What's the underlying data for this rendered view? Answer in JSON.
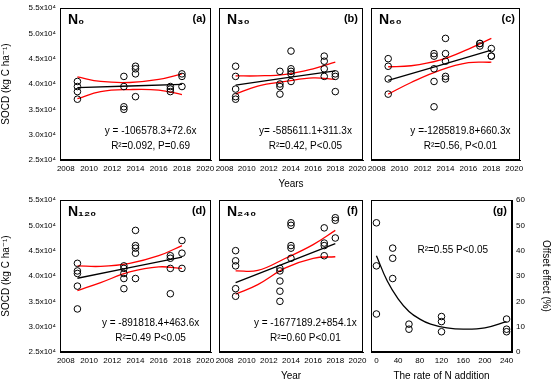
{
  "chart_data": [
    {
      "type": "scatter",
      "title": "N₀",
      "label": "(a)",
      "annotations": [
        "y = -106578.3+72.6x",
        "R²=0.092, P=0.69"
      ],
      "y_label": "SOCD (kg C ha⁻¹)",
      "xlim": [
        2007.5,
        2020.5
      ],
      "xticks": [
        2008,
        2010,
        2012,
        2014,
        2016,
        2018,
        2020
      ],
      "ylim": [
        25000,
        55000
      ],
      "yticks": [
        {
          "value": 25000,
          "label": "2.5x10⁴"
        },
        {
          "value": 30000,
          "label": "3.0x10⁴"
        },
        {
          "value": 35000,
          "label": "3.5x10⁴"
        },
        {
          "value": 40000,
          "label": "4.0x10⁴"
        },
        {
          "value": 45000,
          "label": "4.5x10⁴"
        },
        {
          "value": 50000,
          "label": "5.0x10⁴"
        },
        {
          "value": 55000,
          "label": "5.5x10⁴"
        }
      ],
      "grid": false,
      "series": [
        {
          "type": "scatter",
          "marker": "circle",
          "color": "#000000",
          "x": [
            2009,
            2009,
            2009,
            2009,
            2013,
            2013,
            2013,
            2013,
            2014,
            2014,
            2014,
            2014,
            2017,
            2017,
            2017,
            2018,
            2018,
            2018
          ],
          "values": [
            37000,
            38500,
            39500,
            40500,
            35000,
            35500,
            39500,
            41500,
            37500,
            42000,
            43000,
            43500,
            38500,
            39000,
            39500,
            39500,
            41500,
            42000
          ]
        },
        {
          "type": "line",
          "color": "#000000",
          "x": [
            2009,
            2018
          ],
          "values": [
            39275,
            39928
          ]
        },
        {
          "type": "line",
          "color": "#ff0000",
          "x": [
            2009,
            2011,
            2013.5,
            2016,
            2018
          ],
          "values": [
            41400,
            40500,
            40300,
            40900,
            42000
          ]
        },
        {
          "type": "line",
          "color": "#ff0000",
          "x": [
            2009,
            2011,
            2013.5,
            2016,
            2018
          ],
          "values": [
            37100,
            38500,
            38900,
            38800,
            37900
          ]
        }
      ]
    },
    {
      "type": "scatter",
      "title": "N₃₀",
      "label": "(b)",
      "annotations": [
        "y= -585611.1+311.3x",
        "R²=0.42, P<0.05"
      ],
      "x_label": "Years",
      "tick_labels": "x",
      "xlim": [
        2007.5,
        2020.5
      ],
      "xticks": [
        2008,
        2010,
        2012,
        2014,
        2016,
        2018,
        2020
      ],
      "ylim": [
        25000,
        55000
      ],
      "yticks": [
        25000,
        30000,
        35000,
        40000,
        45000,
        50000,
        55000
      ],
      "grid": false,
      "series": [
        {
          "type": "scatter",
          "marker": "circle",
          "color": "#000000",
          "x": [
            2009,
            2009,
            2009,
            2009,
            2009,
            2013,
            2013,
            2013,
            2013,
            2014,
            2014,
            2014,
            2014,
            2014,
            2017,
            2017,
            2017,
            2017,
            2018,
            2018,
            2018
          ],
          "values": [
            37000,
            37500,
            39000,
            41500,
            43500,
            38000,
            39500,
            40000,
            42500,
            40500,
            42000,
            42500,
            43000,
            46500,
            41500,
            43000,
            44500,
            45500,
            38500,
            41500,
            42000
          ]
        },
        {
          "type": "line",
          "color": "#000000",
          "x": [
            2009,
            2018
          ],
          "values": [
            39791,
            42592
          ]
        },
        {
          "type": "line",
          "color": "#ff0000",
          "x": [
            2009,
            2011,
            2013.5,
            2016,
            2018
          ],
          "values": [
            41600,
            41600,
            41900,
            43000,
            44300
          ]
        },
        {
          "type": "line",
          "color": "#ff0000",
          "x": [
            2009,
            2011,
            2013.5,
            2016,
            2018
          ],
          "values": [
            38000,
            39600,
            40500,
            41200,
            40900
          ]
        }
      ]
    },
    {
      "type": "scatter",
      "title": "N₆₀",
      "label": "(c)",
      "annotations": [
        "y =-1285819.8+660.3x",
        "R²=0.56, P<0.01"
      ],
      "tick_labels": "x",
      "xlim": [
        2007.5,
        2020.5
      ],
      "xticks": [
        2008,
        2010,
        2012,
        2014,
        2016,
        2018,
        2020
      ],
      "ylim": [
        25000,
        55000
      ],
      "yticks": [
        25000,
        30000,
        35000,
        40000,
        45000,
        50000,
        55000
      ],
      "grid": false,
      "series": [
        {
          "type": "scatter",
          "marker": "circle",
          "color": "#000000",
          "x": [
            2009,
            2009,
            2009,
            2009,
            2013,
            2013,
            2013,
            2013,
            2013,
            2014,
            2014,
            2014,
            2014,
            2014,
            2017,
            2017,
            2017,
            2018,
            2018,
            2018
          ],
          "values": [
            38000,
            41000,
            43500,
            45000,
            35500,
            40500,
            43000,
            45500,
            46000,
            41000,
            41500,
            44500,
            46000,
            49000,
            47500,
            48000,
            48000,
            45500,
            45500,
            47000
          ]
        },
        {
          "type": "line",
          "color": "#000000",
          "x": [
            2009,
            2018
          ],
          "values": [
            40723,
            46665
          ]
        },
        {
          "type": "line",
          "color": "#ff0000",
          "x": [
            2009,
            2011,
            2013.5,
            2016,
            2018
          ],
          "values": [
            43400,
            43600,
            44700,
            46900,
            49000
          ]
        },
        {
          "type": "line",
          "color": "#ff0000",
          "x": [
            2009,
            2011,
            2013.5,
            2016,
            2018
          ],
          "values": [
            38000,
            40300,
            42700,
            44200,
            44300
          ]
        }
      ]
    },
    {
      "type": "scatter",
      "title": "N₁₂₀",
      "label": "(d)",
      "annotations": [
        "y = -891818.4+463.6x",
        "R²=0.49 P<0.05"
      ],
      "y_label": "SOCD (kg C ha⁻¹)",
      "xlim": [
        2007.5,
        2020.5
      ],
      "xticks": [
        2008,
        2010,
        2012,
        2014,
        2016,
        2018,
        2020
      ],
      "ylim": [
        25000,
        55000
      ],
      "yticks": [
        {
          "value": 25000,
          "label": "2.5x10⁴"
        },
        {
          "value": 30000,
          "label": "3.0x10⁴"
        },
        {
          "value": 35000,
          "label": "3.5x10⁴"
        },
        {
          "value": 40000,
          "label": "4.0x10⁴"
        },
        {
          "value": 45000,
          "label": "4.5x10⁴"
        },
        {
          "value": 50000,
          "label": "5.0x10⁴"
        },
        {
          "value": 55000,
          "label": "5.5x10⁴"
        }
      ],
      "grid": false,
      "series": [
        {
          "type": "scatter",
          "marker": "circle",
          "color": "#000000",
          "x": [
            2009,
            2009,
            2009,
            2009,
            2009,
            2013,
            2013,
            2013,
            2013,
            2013,
            2014,
            2014,
            2014,
            2014,
            2014,
            2017,
            2017,
            2017,
            2017,
            2018,
            2018,
            2018
          ],
          "values": [
            33500,
            38000,
            40500,
            41000,
            42500,
            37500,
            39500,
            40500,
            41500,
            42000,
            39500,
            44500,
            45500,
            46000,
            49000,
            36500,
            41500,
            43500,
            44000,
            41500,
            44500,
            47000
          ]
        },
        {
          "type": "line",
          "color": "#000000",
          "x": [
            2009,
            2018
          ],
          "values": [
            39554,
            43726
          ]
        },
        {
          "type": "line",
          "color": "#ff0000",
          "x": [
            2009,
            2011,
            2013.5,
            2016,
            2018
          ],
          "values": [
            42000,
            41900,
            42500,
            44000,
            46000
          ]
        },
        {
          "type": "line",
          "color": "#ff0000",
          "x": [
            2009,
            2011,
            2013.5,
            2016,
            2018
          ],
          "values": [
            37100,
            38700,
            40800,
            41800,
            41500
          ]
        }
      ]
    },
    {
      "type": "scatter",
      "title": "N₂₄₀",
      "label": "(f)",
      "annotations": [
        "y = -1677189.2+854.1x",
        "R²=0.60 P<0.01"
      ],
      "x_label": "Year",
      "tick_labels": "x",
      "xlim": [
        2007.5,
        2020.5
      ],
      "xticks": [
        2008,
        2010,
        2012,
        2014,
        2016,
        2018,
        2020
      ],
      "ylim": [
        25000,
        55000
      ],
      "yticks": [
        25000,
        30000,
        35000,
        40000,
        45000,
        50000,
        55000
      ],
      "grid": false,
      "series": [
        {
          "type": "scatter",
          "marker": "circle",
          "color": "#000000",
          "x": [
            2009,
            2009,
            2009,
            2009,
            2009,
            2013,
            2013,
            2013,
            2013,
            2013,
            2014,
            2014,
            2014,
            2014,
            2014,
            2017,
            2017,
            2017,
            2017,
            2018,
            2018,
            2018
          ],
          "values": [
            36000,
            37500,
            42000,
            43000,
            45000,
            35000,
            37000,
            39000,
            41000,
            41500,
            43500,
            45500,
            46000,
            50000,
            50500,
            44000,
            46000,
            46500,
            49500,
            47500,
            51000,
            51500
          ]
        },
        {
          "type": "line",
          "color": "#000000",
          "x": [
            2009,
            2018
          ],
          "values": [
            38698,
            46385
          ]
        },
        {
          "type": "line",
          "color": "#ff0000",
          "x": [
            2009,
            2011,
            2013.5,
            2016,
            2018
          ],
          "values": [
            41000,
            41100,
            43500,
            46200,
            49000
          ]
        },
        {
          "type": "line",
          "color": "#ff0000",
          "x": [
            2009,
            2011,
            2013.5,
            2016,
            2018
          ],
          "values": [
            36400,
            38300,
            41600,
            43500,
            43800
          ]
        }
      ]
    },
    {
      "type": "scatter",
      "label": "(g)",
      "annotations": [
        "R²=0.55 P<0.05"
      ],
      "x_label": "The rate of N addition",
      "y2_label": "Offset effect (%)",
      "xlim": [
        -10,
        250
      ],
      "xticks": [
        0,
        40,
        80,
        120,
        160,
        200,
        240
      ],
      "y2lim": [
        0,
        60
      ],
      "y2ticks": [
        0,
        10,
        20,
        30,
        40,
        50,
        60
      ],
      "grid": false,
      "series": [
        {
          "type": "scatter",
          "marker": "circle",
          "color": "#000000",
          "axis": "y2",
          "x": [
            0,
            0,
            0,
            30,
            30,
            30,
            60,
            60,
            120,
            120,
            120,
            240,
            240,
            240
          ],
          "values": [
            51,
            34,
            15,
            41,
            37,
            29,
            11,
            9,
            14,
            12,
            8,
            13,
            9,
            8
          ]
        },
        {
          "type": "line",
          "color": "#000000",
          "axis": "y2",
          "x": [
            0,
            20,
            40,
            60,
            80,
            100,
            130,
            160,
            200,
            240
          ],
          "values": [
            38,
            28,
            21,
            16,
            13,
            11,
            9.5,
            9,
            9.5,
            12
          ]
        }
      ]
    }
  ]
}
